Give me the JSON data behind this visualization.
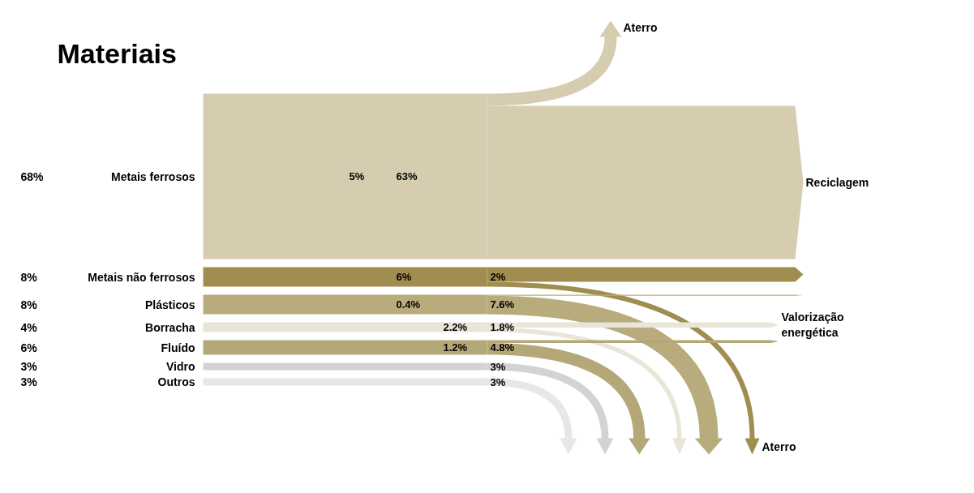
{
  "chart_data": {
    "type": "other",
    "title": "Materiais",
    "categories": [
      "Metais ferrosos",
      "Metais não ferrosos",
      "Plásticos",
      "Borracha",
      "Fluído",
      "Vidro",
      "Outros"
    ],
    "values": [
      68,
      8,
      8,
      4,
      6,
      3,
      3
    ],
    "value_labels": [
      "68%",
      "8%",
      "8%",
      "4%",
      "6%",
      "3%",
      "3%"
    ],
    "colors": [
      "#d6cdb0",
      "#a08d4f",
      "#b8ab7c",
      "#e9e5d8",
      "#b5a878",
      "#d2d3d5",
      "#e6e7e8"
    ],
    "annotations": [
      "Aterro",
      "Reciclagem",
      "Valorização energética",
      "Aterro"
    ],
    "series": [
      {
        "colors": [
          "#d6cdb0",
          null,
          null,
          null,
          null,
          null,
          null
        ],
        "values": [
          5,
          null,
          null,
          null,
          null,
          null,
          null
        ],
        "value_labels": [
          "5%",
          null,
          null,
          null,
          null,
          null,
          null
        ]
      },
      {
        "colors": [
          "#d6cdb0",
          "#a08d4f",
          "#b8ab7c",
          null,
          null,
          null,
          null
        ],
        "values": [
          63,
          6,
          0.4,
          null,
          null,
          null,
          null
        ],
        "value_labels": [
          "63%",
          "6%",
          "0.4%",
          null,
          null,
          null,
          null
        ]
      },
      {
        "colors": [
          null,
          null,
          null,
          "#e9e5d8",
          "#b5a878",
          null,
          null
        ],
        "values": [
          null,
          null,
          null,
          2.2,
          1.2,
          null,
          null
        ],
        "value_labels": [
          null,
          null,
          null,
          "2.2%",
          "1.2%",
          null,
          null
        ]
      },
      {
        "colors": [
          null,
          "#a08d4f",
          "#b8ab7c",
          "#e9e5d8",
          "#b5a878",
          "#d2d3d5",
          "#e6e7e8"
        ],
        "values": [
          null,
          2,
          7.6,
          1.8,
          4.8,
          3,
          3
        ],
        "value_labels": [
          null,
          "2%",
          "7.6%",
          "1.8%",
          "4.8%",
          "3%",
          "3%"
        ]
      }
    ]
  }
}
